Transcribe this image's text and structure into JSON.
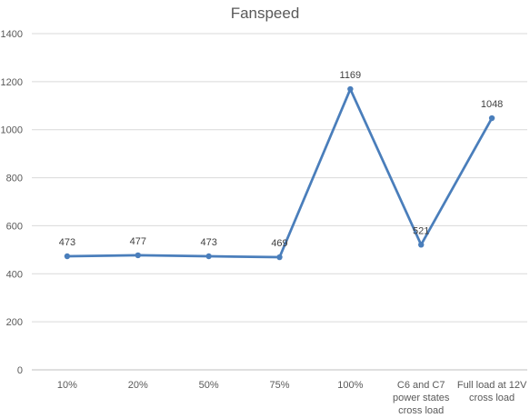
{
  "chart_data": {
    "type": "line",
    "title": "Fanspeed",
    "xlabel": "",
    "ylabel": "",
    "ylim": [
      0,
      1400
    ],
    "yticks": [
      0,
      200,
      400,
      600,
      800,
      1000,
      1200,
      1400
    ],
    "grid": true,
    "legend": "none",
    "categories": [
      [
        "10%"
      ],
      [
        "20%"
      ],
      [
        "50%"
      ],
      [
        "75%"
      ],
      [
        "100%"
      ],
      [
        "C6 and C7",
        "power states",
        "cross load"
      ],
      [
        "Full load at 12V",
        "cross load"
      ]
    ],
    "series": [
      {
        "values": [
          473,
          477,
          473,
          469,
          1169,
          521,
          1048
        ],
        "color": "#4a7ebb"
      }
    ]
  }
}
